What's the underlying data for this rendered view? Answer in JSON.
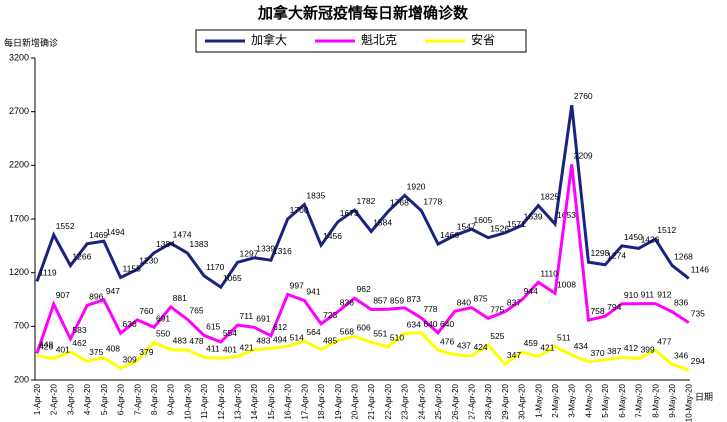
{
  "chart_data": {
    "type": "line",
    "title": "加拿大新冠疫情每日新增确诊数",
    "y_label": "每日新增确诊",
    "x_label": "日期",
    "categories": [
      "1-Apr-20",
      "2-Apr-20",
      "3-Apr-20",
      "4-Apr-20",
      "5-Apr-20",
      "6-Apr-20",
      "7-Apr-20",
      "8-Apr-20",
      "9-Apr-20",
      "10-Apr-20",
      "11-Apr-20",
      "12-Apr-20",
      "13-Apr-20",
      "14-Apr-20",
      "15-Apr-20",
      "16-Apr-20",
      "17-Apr-20",
      "18-Apr-20",
      "19-Apr-20",
      "20-Apr-20",
      "21-Apr-20",
      "22-Apr-20",
      "23-Apr-20",
      "24-Apr-20",
      "25-Apr-20",
      "26-Apr-20",
      "27-Apr-20",
      "28-Apr-20",
      "29-Apr-20",
      "30-Apr-20",
      "1-May-20",
      "2-May-20",
      "3-May-20",
      "4-May-20",
      "5-May-20",
      "6-May-20",
      "7-May-20",
      "8-May-20",
      "9-May-20",
      "10-May-20"
    ],
    "series": [
      {
        "name": "加拿大",
        "color": "#1a237e",
        "values": [
          1119,
          1552,
          1266,
          1469,
          1494,
          1155,
          1230,
          1384,
          1474,
          1383,
          1170,
          1065,
          1297,
          1339,
          1316,
          1700,
          1835,
          1456,
          1673,
          1782,
          1584,
          1768,
          1920,
          1778,
          1466,
          1547,
          1605,
          1526,
          1571,
          1639,
          1825,
          1653,
          2760,
          1298,
          1274,
          1450,
          1426,
          1512,
          1268,
          1146
        ]
      },
      {
        "name": "魁北克",
        "color": "#ff00ff",
        "values": [
          448,
          907,
          583,
          896,
          947,
          636,
          760,
          691,
          881,
          765,
          615,
          554,
          711,
          691,
          612,
          997,
          941,
          723,
          836,
          962,
          857,
          859,
          873,
          778,
          640,
          840,
          875,
          775,
          837,
          944,
          1110,
          1008,
          2209,
          758,
          794,
          910,
          911,
          912,
          836,
          735
        ]
      },
      {
        "name": "安省",
        "color": "#ffff00",
        "values": [
          426,
          401,
          462,
          375,
          408,
          309,
          379,
          550,
          483,
          478,
          411,
          401,
          421,
          483,
          494,
          514,
          564,
          485,
          568,
          606,
          551,
          510,
          634,
          640,
          476,
          437,
          424,
          525,
          347,
          459,
          421,
          511,
          434,
          370,
          387,
          412,
          399,
          477,
          346,
          294
        ]
      }
    ],
    "ylim": [
      200,
      3200
    ],
    "yticks": [
      200,
      700,
      1200,
      1700,
      2200,
      2700,
      3200
    ],
    "legend": "top"
  }
}
